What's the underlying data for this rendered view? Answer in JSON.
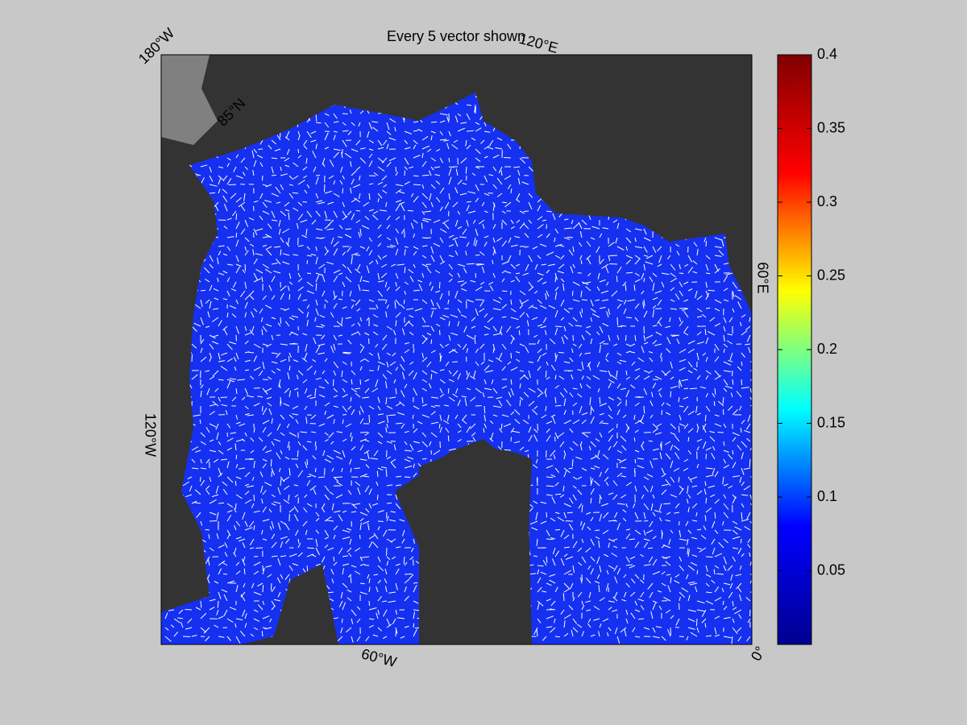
{
  "map": {
    "title": "Every 5 vector shown",
    "labels": [
      "180°W",
      "120°E",
      "60°E",
      "0°",
      "60°W",
      "120°W",
      "85°N"
    ]
  },
  "colorbar": {
    "lim": [
      0,
      0.4
    ],
    "ticks": [
      0.05,
      0.1,
      0.15,
      0.2,
      0.25,
      0.3,
      0.35,
      0.4
    ],
    "colors": [
      "#00008f",
      "#0000ff",
      "#00ffff",
      "#ffff00",
      "#ff0000",
      "#800000"
    ]
  }
}
